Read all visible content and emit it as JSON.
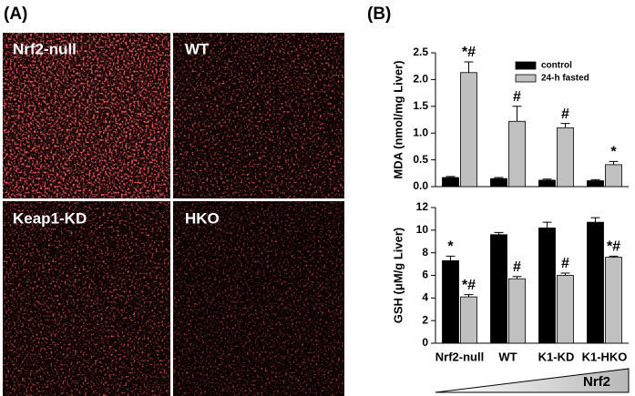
{
  "panel_labels": [
    "(A)",
    "(B)"
  ],
  "image_labels": [
    "Nrf2-null",
    "WT",
    "Keap1-KD",
    "HKO"
  ],
  "gradient_label": "Nrf2",
  "chart_data": [
    {
      "type": "bar",
      "y_label": "MDA (nmol/mg Liver)",
      "ylim": [
        0,
        2.5
      ],
      "yticks": [
        {
          "value": 0,
          "label": "0.0"
        },
        {
          "value": 0.5,
          "label": "0.5"
        },
        {
          "value": 1,
          "label": "1.0"
        },
        {
          "value": 1.5,
          "label": "1.5"
        },
        {
          "value": 2,
          "label": "2.0"
        },
        {
          "value": 2.5,
          "label": "2.5"
        }
      ],
      "series": [
        {
          "name": "control",
          "color": "#000000",
          "values": [
            0.17,
            0.15,
            0.12,
            0.11
          ],
          "errors": [
            0.02,
            0.02,
            0.02,
            0.02
          ],
          "annotations": [
            null,
            null,
            null,
            null
          ]
        },
        {
          "name": "24-h fasted",
          "color": "#c0c0c0",
          "values": [
            2.13,
            1.22,
            1.1,
            0.41
          ],
          "errors": [
            0.2,
            0.28,
            0.08,
            0.06
          ],
          "annotations": [
            "*#",
            "#",
            "#",
            "*"
          ]
        }
      ]
    },
    {
      "type": "bar",
      "y_label": "GSH (μM/g Liver)",
      "categories": [
        "Nrf2-null",
        "WT",
        "K1-KD",
        "K1-HKO"
      ],
      "ylim": [
        0,
        12
      ],
      "yticks": [
        0,
        2,
        4,
        6,
        8,
        10,
        12
      ],
      "series": [
        {
          "color": "#000000",
          "values": [
            7.3,
            9.6,
            10.2,
            10.7
          ],
          "errors": [
            0.4,
            0.2,
            0.5,
            0.4
          ],
          "annotations": [
            "*",
            null,
            null,
            null
          ]
        },
        {
          "color": "#c0c0c0",
          "values": [
            4.1,
            5.7,
            6.0,
            7.6
          ],
          "errors": [
            0.2,
            0.2,
            0.2,
            0.1
          ],
          "annotations": [
            "*#",
            "#",
            "#",
            "*#"
          ]
        }
      ]
    }
  ]
}
